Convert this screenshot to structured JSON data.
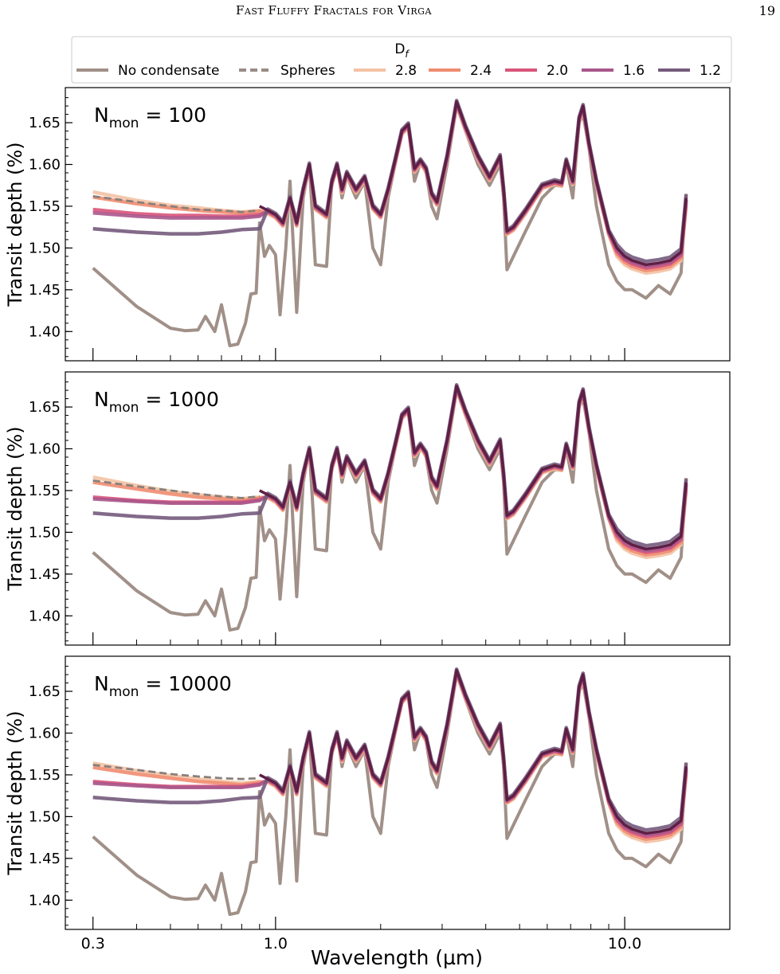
{
  "running_head": {
    "title": "Fast Fluffy Fractals for Virga",
    "page_number": "19"
  },
  "legend": {
    "title_base": "D",
    "title_sub": "f",
    "entries": [
      {
        "label": "No condensate",
        "color": "#a09088",
        "dash": "solid"
      },
      {
        "label": "Spheres",
        "color": "#9a8b84",
        "dash": "dashed"
      },
      {
        "label": "2.8",
        "color": "#f3c2a4",
        "dash": "solid"
      },
      {
        "label": "2.4",
        "color": "#ef8c70",
        "dash": "solid"
      },
      {
        "label": "2.0",
        "color": "#d9547a",
        "dash": "solid"
      },
      {
        "label": "1.6",
        "color": "#a8568c",
        "dash": "solid"
      },
      {
        "label": "1.2",
        "color": "#745a7c",
        "dash": "solid"
      }
    ]
  },
  "x_axis": {
    "label": "Wavelength (µm)",
    "scale": "log",
    "xlim": [
      0.25,
      20
    ],
    "ticks": [
      0.3,
      1.0,
      10.0
    ],
    "tick_labels": [
      "0.3",
      "1.0",
      "10.0"
    ]
  },
  "y_axis": {
    "label": "Transit depth (%)",
    "ylim": [
      1.365,
      1.692
    ],
    "ticks": [
      1.4,
      1.45,
      1.5,
      1.55,
      1.6,
      1.65
    ],
    "tick_labels": [
      "1.40",
      "1.45",
      "1.50",
      "1.55",
      "1.60",
      "1.65"
    ]
  },
  "panel_labels": [
    {
      "base": "N",
      "sub": "mon",
      "rest": " = 100"
    },
    {
      "base": "N",
      "sub": "mon",
      "rest": " = 1000"
    },
    {
      "base": "N",
      "sub": "mon",
      "rest": " = 10000"
    }
  ],
  "chart_data": [
    {
      "type": "line",
      "panel": "N_mon = 100",
      "xlabel": "Wavelength (µm)",
      "ylabel": "Transit depth (%)",
      "xscale": "log",
      "xlim": [
        0.25,
        20
      ],
      "ylim": [
        1.365,
        1.692
      ],
      "gas_only": {
        "x": [
          0.3,
          0.4,
          0.5,
          0.55,
          0.6,
          0.63,
          0.67,
          0.7,
          0.74,
          0.78,
          0.82,
          0.85,
          0.88,
          0.9,
          0.93,
          0.96,
          1.0,
          1.03,
          1.07,
          1.1,
          1.15,
          1.2,
          1.25,
          1.3,
          1.4,
          1.45,
          1.5,
          1.55,
          1.6,
          1.7,
          1.8,
          1.9,
          2.0,
          2.1,
          2.2,
          2.3,
          2.4,
          2.5,
          2.6,
          2.7,
          2.8,
          2.9,
          3.1,
          3.3,
          3.5,
          3.8,
          4.1,
          4.4,
          4.5,
          4.6,
          4.8,
          5.2,
          5.8,
          6.3,
          6.6,
          6.8,
          7.1,
          7.4,
          7.6,
          7.9,
          8.3,
          9.0,
          9.5,
          10.0,
          10.5,
          11.5,
          12.5,
          13.5,
          14.5,
          15.0
        ],
        "y": [
          1.476,
          1.43,
          1.404,
          1.401,
          1.402,
          1.418,
          1.4,
          1.432,
          1.383,
          1.385,
          1.41,
          1.445,
          1.446,
          1.53,
          1.49,
          1.503,
          1.492,
          1.42,
          1.5,
          1.58,
          1.423,
          1.56,
          1.6,
          1.48,
          1.478,
          1.58,
          1.6,
          1.56,
          1.586,
          1.56,
          1.58,
          1.5,
          1.48,
          1.56,
          1.6,
          1.64,
          1.646,
          1.58,
          1.602,
          1.59,
          1.55,
          1.535,
          1.6,
          1.67,
          1.64,
          1.6,
          1.575,
          1.6,
          1.56,
          1.474,
          1.49,
          1.52,
          1.56,
          1.575,
          1.574,
          1.6,
          1.56,
          1.65,
          1.66,
          1.62,
          1.55,
          1.48,
          1.46,
          1.45,
          1.45,
          1.44,
          1.455,
          1.445,
          1.47,
          1.565
        ]
      },
      "spheres": {
        "x": [
          0.3,
          0.4,
          0.5,
          0.6,
          0.7,
          0.8,
          0.9
        ],
        "y": [
          1.562,
          1.555,
          1.55,
          1.546,
          1.545,
          1.543,
          1.545
        ]
      },
      "series": [
        {
          "name": "2.8",
          "x": [
            0.3,
            0.4,
            0.5,
            0.6,
            0.7,
            0.8,
            0.9
          ],
          "y": [
            1.567,
            1.557,
            1.551,
            1.548,
            1.545,
            1.543,
            1.545
          ]
        },
        {
          "name": "2.4",
          "x": [
            0.3,
            0.4,
            0.5,
            0.6,
            0.7,
            0.8,
            0.9
          ],
          "y": [
            1.561,
            1.553,
            1.548,
            1.545,
            1.543,
            1.542,
            1.544
          ]
        },
        {
          "name": "2.0",
          "x": [
            0.3,
            0.4,
            0.5,
            0.6,
            0.7,
            0.8,
            0.9
          ],
          "y": [
            1.546,
            1.541,
            1.539,
            1.539,
            1.538,
            1.538,
            1.54
          ]
        },
        {
          "name": "1.6",
          "x": [
            0.3,
            0.4,
            0.5,
            0.6,
            0.7,
            0.8,
            0.9
          ],
          "y": [
            1.542,
            1.538,
            1.536,
            1.536,
            1.536,
            1.536,
            1.538
          ]
        },
        {
          "name": "1.2",
          "x": [
            0.3,
            0.4,
            0.5,
            0.6,
            0.7,
            0.8,
            0.9
          ],
          "y": [
            1.523,
            1.519,
            1.517,
            1.517,
            1.519,
            1.522,
            1.523
          ]
        }
      ]
    },
    {
      "type": "line",
      "panel": "N_mon = 1000",
      "xlabel": "Wavelength (µm)",
      "ylabel": "Transit depth (%)",
      "xscale": "log",
      "xlim": [
        0.25,
        20
      ],
      "ylim": [
        1.365,
        1.692
      ],
      "gas_only": {
        "x": [
          0.3,
          0.4,
          0.5,
          0.55,
          0.6,
          0.63,
          0.67,
          0.7,
          0.74,
          0.78,
          0.82,
          0.85,
          0.88,
          0.9,
          0.93,
          0.96,
          1.0,
          1.03,
          1.07,
          1.1,
          1.15,
          1.2,
          1.25,
          1.3,
          1.4,
          1.45,
          1.5,
          1.55,
          1.6,
          1.7,
          1.8,
          1.9,
          2.0,
          2.1,
          2.2,
          2.3,
          2.4,
          2.5,
          2.6,
          2.7,
          2.8,
          2.9,
          3.1,
          3.3,
          3.5,
          3.8,
          4.1,
          4.4,
          4.5,
          4.6,
          4.8,
          5.2,
          5.8,
          6.3,
          6.6,
          6.8,
          7.1,
          7.4,
          7.6,
          7.9,
          8.3,
          9.0,
          9.5,
          10.0,
          10.5,
          11.5,
          12.5,
          13.5,
          14.5,
          15.0
        ],
        "y": [
          1.476,
          1.43,
          1.404,
          1.401,
          1.402,
          1.418,
          1.4,
          1.432,
          1.383,
          1.385,
          1.41,
          1.445,
          1.446,
          1.53,
          1.49,
          1.503,
          1.492,
          1.42,
          1.5,
          1.58,
          1.423,
          1.56,
          1.6,
          1.48,
          1.478,
          1.58,
          1.6,
          1.56,
          1.586,
          1.56,
          1.58,
          1.5,
          1.48,
          1.56,
          1.6,
          1.64,
          1.646,
          1.58,
          1.602,
          1.59,
          1.55,
          1.535,
          1.6,
          1.67,
          1.64,
          1.6,
          1.575,
          1.6,
          1.56,
          1.474,
          1.49,
          1.52,
          1.56,
          1.575,
          1.574,
          1.6,
          1.56,
          1.65,
          1.66,
          1.62,
          1.55,
          1.48,
          1.46,
          1.45,
          1.45,
          1.44,
          1.455,
          1.445,
          1.47,
          1.565
        ]
      },
      "spheres": {
        "x": [
          0.3,
          0.4,
          0.5,
          0.6,
          0.7,
          0.8,
          0.9
        ],
        "y": [
          1.562,
          1.555,
          1.55,
          1.546,
          1.543,
          1.541,
          1.543
        ]
      },
      "series": [
        {
          "name": "2.8",
          "x": [
            0.3,
            0.4,
            0.5,
            0.6,
            0.7,
            0.8,
            0.9
          ],
          "y": [
            1.566,
            1.556,
            1.549,
            1.545,
            1.542,
            1.54,
            1.542
          ]
        },
        {
          "name": "2.4",
          "x": [
            0.3,
            0.4,
            0.5,
            0.6,
            0.7,
            0.8,
            0.9
          ],
          "y": [
            1.56,
            1.552,
            1.546,
            1.542,
            1.54,
            1.538,
            1.541
          ]
        },
        {
          "name": "2.0",
          "x": [
            0.3,
            0.4,
            0.5,
            0.6,
            0.7,
            0.8,
            0.9
          ],
          "y": [
            1.542,
            1.538,
            1.536,
            1.536,
            1.536,
            1.536,
            1.539
          ]
        },
        {
          "name": "1.6",
          "x": [
            0.3,
            0.4,
            0.5,
            0.6,
            0.7,
            0.8,
            0.9
          ],
          "y": [
            1.54,
            1.537,
            1.535,
            1.535,
            1.535,
            1.535,
            1.538
          ]
        },
        {
          "name": "1.2",
          "x": [
            0.3,
            0.4,
            0.5,
            0.6,
            0.7,
            0.8,
            0.9
          ],
          "y": [
            1.523,
            1.519,
            1.517,
            1.517,
            1.519,
            1.522,
            1.523
          ]
        }
      ]
    },
    {
      "type": "line",
      "panel": "N_mon = 10000",
      "xlabel": "Wavelength (µm)",
      "ylabel": "Transit depth (%)",
      "xscale": "log",
      "xlim": [
        0.25,
        20
      ],
      "ylim": [
        1.365,
        1.692
      ],
      "gas_only": {
        "x": [
          0.3,
          0.4,
          0.5,
          0.55,
          0.6,
          0.63,
          0.67,
          0.7,
          0.74,
          0.78,
          0.82,
          0.85,
          0.88,
          0.9,
          0.93,
          0.96,
          1.0,
          1.03,
          1.07,
          1.1,
          1.15,
          1.2,
          1.25,
          1.3,
          1.4,
          1.45,
          1.5,
          1.55,
          1.6,
          1.7,
          1.8,
          1.9,
          2.0,
          2.1,
          2.2,
          2.3,
          2.4,
          2.5,
          2.6,
          2.7,
          2.8,
          2.9,
          3.1,
          3.3,
          3.5,
          3.8,
          4.1,
          4.4,
          4.5,
          4.6,
          4.8,
          5.2,
          5.8,
          6.3,
          6.6,
          6.8,
          7.1,
          7.4,
          7.6,
          7.9,
          8.3,
          9.0,
          9.5,
          10.0,
          10.5,
          11.5,
          12.5,
          13.5,
          14.5,
          15.0
        ],
        "y": [
          1.476,
          1.43,
          1.404,
          1.401,
          1.402,
          1.418,
          1.4,
          1.432,
          1.383,
          1.385,
          1.41,
          1.445,
          1.446,
          1.53,
          1.49,
          1.503,
          1.492,
          1.42,
          1.5,
          1.58,
          1.423,
          1.56,
          1.6,
          1.48,
          1.478,
          1.58,
          1.6,
          1.56,
          1.586,
          1.56,
          1.58,
          1.5,
          1.48,
          1.56,
          1.6,
          1.64,
          1.646,
          1.58,
          1.602,
          1.59,
          1.55,
          1.535,
          1.6,
          1.67,
          1.64,
          1.6,
          1.575,
          1.6,
          1.56,
          1.474,
          1.49,
          1.52,
          1.56,
          1.575,
          1.574,
          1.6,
          1.56,
          1.65,
          1.66,
          1.62,
          1.55,
          1.48,
          1.46,
          1.45,
          1.45,
          1.44,
          1.455,
          1.445,
          1.47,
          1.565
        ]
      },
      "spheres": {
        "x": [
          0.3,
          0.4,
          0.5,
          0.6,
          0.7,
          0.8,
          0.9
        ],
        "y": [
          1.562,
          1.556,
          1.551,
          1.548,
          1.546,
          1.545,
          1.546
        ]
      },
      "series": [
        {
          "name": "2.8",
          "x": [
            0.3,
            0.4,
            0.5,
            0.6,
            0.7,
            0.8,
            0.9
          ],
          "y": [
            1.564,
            1.555,
            1.549,
            1.545,
            1.542,
            1.54,
            1.542
          ]
        },
        {
          "name": "2.4",
          "x": [
            0.3,
            0.4,
            0.5,
            0.6,
            0.7,
            0.8,
            0.9
          ],
          "y": [
            1.559,
            1.551,
            1.546,
            1.542,
            1.54,
            1.538,
            1.541
          ]
        },
        {
          "name": "2.0",
          "x": [
            0.3,
            0.4,
            0.5,
            0.6,
            0.7,
            0.8,
            0.9
          ],
          "y": [
            1.542,
            1.538,
            1.536,
            1.536,
            1.536,
            1.536,
            1.539
          ]
        },
        {
          "name": "1.6",
          "x": [
            0.3,
            0.4,
            0.5,
            0.6,
            0.7,
            0.8,
            0.9
          ],
          "y": [
            1.54,
            1.537,
            1.535,
            1.535,
            1.535,
            1.535,
            1.538
          ]
        },
        {
          "name": "1.2",
          "x": [
            0.3,
            0.4,
            0.5,
            0.6,
            0.7,
            0.8,
            0.9
          ],
          "y": [
            1.523,
            1.519,
            1.517,
            1.517,
            1.519,
            1.522,
            1.523
          ]
        }
      ],
      "shared_infrared": {
        "x": [
          0.9,
          0.95,
          1.0,
          1.05,
          1.1,
          1.15,
          1.2,
          1.25,
          1.3,
          1.4,
          1.45,
          1.5,
          1.55,
          1.6,
          1.7,
          1.8,
          1.9,
          2.0,
          2.1,
          2.2,
          2.3,
          2.4,
          2.5,
          2.6,
          2.7,
          2.8,
          2.9,
          3.1,
          3.3,
          3.5,
          3.8,
          4.1,
          4.4,
          4.5,
          4.6,
          4.8,
          5.2,
          5.8,
          6.3,
          6.6,
          6.8,
          7.1,
          7.4,
          7.6,
          7.9,
          8.3,
          9.0,
          9.5,
          10.0,
          10.5,
          11.5,
          12.5,
          13.5,
          14.5,
          15.0
        ],
        "y": [
          1.55,
          1.545,
          1.54,
          1.53,
          1.56,
          1.53,
          1.57,
          1.6,
          1.55,
          1.54,
          1.58,
          1.6,
          1.57,
          1.59,
          1.57,
          1.585,
          1.55,
          1.54,
          1.57,
          1.605,
          1.64,
          1.648,
          1.595,
          1.605,
          1.595,
          1.565,
          1.555,
          1.61,
          1.675,
          1.645,
          1.61,
          1.585,
          1.61,
          1.57,
          1.52,
          1.525,
          1.545,
          1.575,
          1.58,
          1.578,
          1.605,
          1.58,
          1.655,
          1.67,
          1.625,
          1.58,
          1.52,
          1.5,
          1.49,
          1.485,
          1.48,
          1.482,
          1.485,
          1.495,
          1.56
        ]
      }
    }
  ]
}
